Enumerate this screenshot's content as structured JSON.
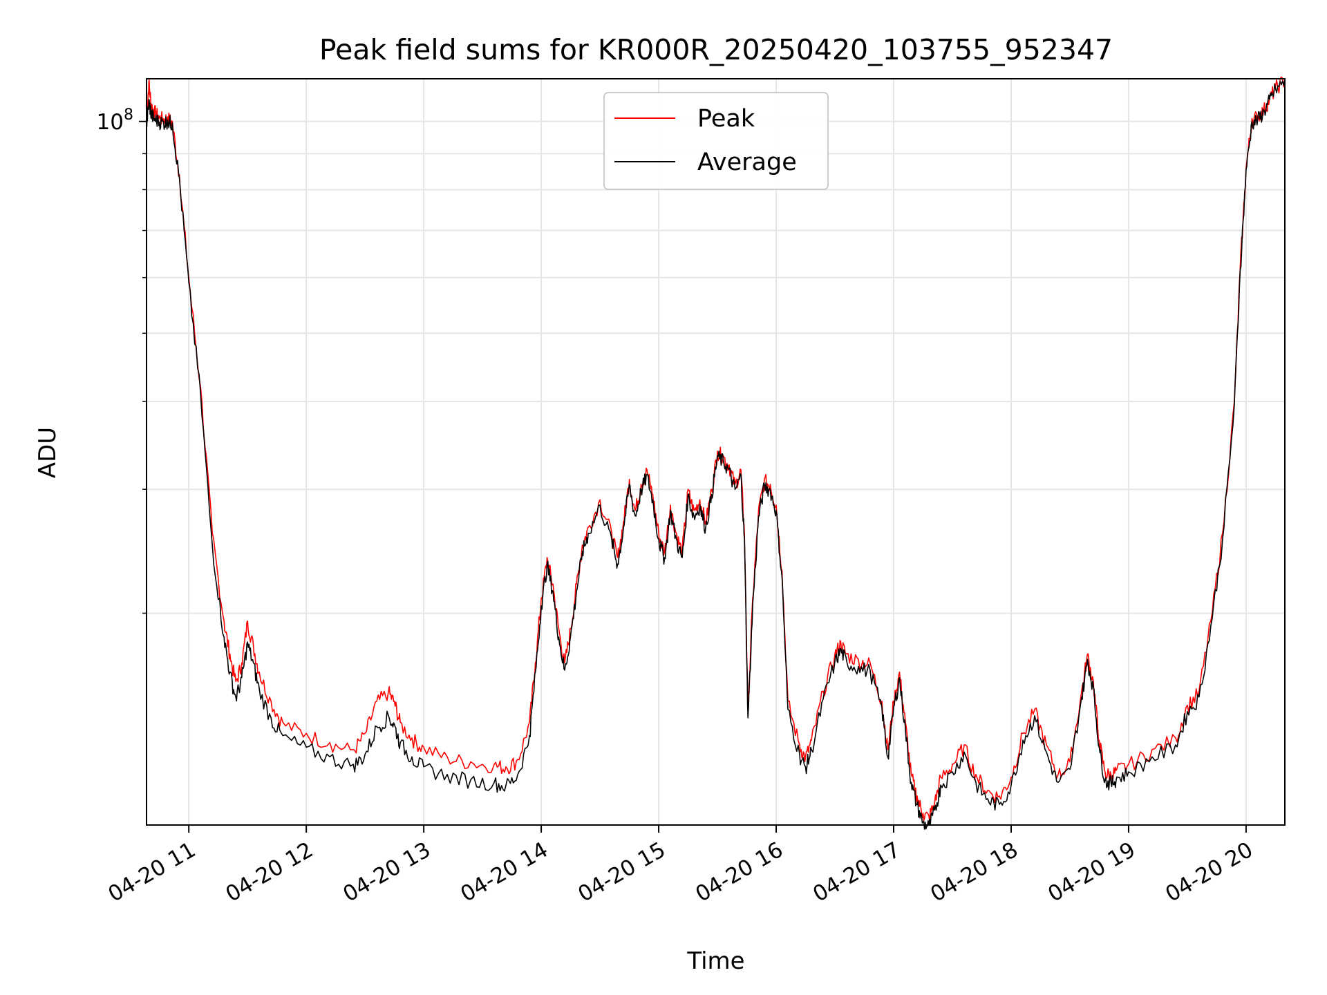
{
  "chart_data": {
    "type": "line",
    "title": "Peak field sums for KR000R_20250420_103755_952347",
    "xlabel": "Time",
    "ylabel": "ADU",
    "yscale": "log",
    "grid": true,
    "legend_position": "top-center",
    "xlim": [
      10.64,
      20.33
    ],
    "ylim": [
      10000000,
      115000000
    ],
    "x_unit": "hour of 2025-04-20",
    "x_ticks": [
      11,
      12,
      13,
      14,
      15,
      16,
      17,
      18,
      19,
      20
    ],
    "x_tick_labels": [
      "04-20 11",
      "04-20 12",
      "04-20 13",
      "04-20 14",
      "04-20 15",
      "04-20 16",
      "04-20 17",
      "04-20 18",
      "04-20 19",
      "04-20 20"
    ],
    "y_major_ticks": [
      100000000
    ],
    "y_major_tick_labels": [
      {
        "base": "10",
        "exp": "8"
      }
    ],
    "y_minor_ticks": [
      20000000,
      30000000,
      40000000,
      50000000,
      60000000,
      70000000,
      80000000,
      90000000
    ],
    "series": [
      {
        "name": "Peak",
        "color": "#ff0000",
        "x": [
          10.64,
          10.66,
          10.68,
          10.7,
          10.74,
          10.78,
          10.82,
          10.86,
          10.92,
          11.0,
          11.1,
          11.2,
          11.3,
          11.35,
          11.4,
          11.45,
          11.5,
          11.55,
          11.6,
          11.7,
          11.8,
          12.0,
          12.2,
          12.4,
          12.5,
          12.6,
          12.7,
          12.75,
          12.8,
          12.9,
          13.0,
          13.2,
          13.4,
          13.6,
          13.7,
          13.8,
          13.9,
          13.95,
          14.0,
          14.05,
          14.1,
          14.15,
          14.2,
          14.25,
          14.3,
          14.35,
          14.4,
          14.5,
          14.6,
          14.65,
          14.7,
          14.75,
          14.8,
          14.85,
          14.9,
          14.95,
          15.0,
          15.05,
          15.1,
          15.15,
          15.2,
          15.25,
          15.3,
          15.35,
          15.4,
          15.45,
          15.5,
          15.55,
          15.6,
          15.65,
          15.7,
          15.73,
          15.76,
          15.8,
          15.85,
          15.9,
          15.95,
          16.0,
          16.05,
          16.1,
          16.2,
          16.25,
          16.3,
          16.4,
          16.5,
          16.55,
          16.6,
          16.7,
          16.8,
          16.9,
          16.95,
          17.0,
          17.05,
          17.1,
          17.15,
          17.2,
          17.25,
          17.3,
          17.35,
          17.4,
          17.5,
          17.6,
          17.7,
          17.8,
          17.9,
          18.0,
          18.1,
          18.2,
          18.3,
          18.4,
          18.5,
          18.6,
          18.65,
          18.7,
          18.75,
          18.8,
          18.85,
          18.9,
          19.0,
          19.2,
          19.4,
          19.5,
          19.6,
          19.7,
          19.8,
          19.9,
          19.95,
          20.0,
          20.05,
          20.1,
          20.15,
          20.2,
          20.25,
          20.33
        ],
        "y": [
          100000000,
          114000000,
          106000000,
          104000000,
          102000000,
          101000000,
          101500000,
          100000000,
          84000000,
          60000000,
          42000000,
          26000000,
          19500000,
          17500000,
          16000000,
          17000000,
          19500000,
          18000000,
          16500000,
          15000000,
          14000000,
          13500000,
          13100000,
          12800000,
          13500000,
          15000000,
          15500000,
          15000000,
          14000000,
          13300000,
          12900000,
          12500000,
          12300000,
          12200000,
          12100000,
          12400000,
          14000000,
          17000000,
          21000000,
          24000000,
          22000000,
          19000000,
          17000000,
          19000000,
          22000000,
          25000000,
          26500000,
          29000000,
          26000000,
          24000000,
          27000000,
          31000000,
          28000000,
          30500000,
          32000000,
          29500000,
          26000000,
          24500000,
          28500000,
          26000000,
          24500000,
          30000000,
          28000000,
          29000000,
          27000000,
          30000000,
          34000000,
          33500000,
          32500000,
          30500000,
          32000000,
          26000000,
          14500000,
          21000000,
          28000000,
          31000000,
          30500000,
          28500000,
          23000000,
          15000000,
          13000000,
          12500000,
          13200000,
          15500000,
          17500000,
          18200000,
          17500000,
          17200000,
          17000000,
          15000000,
          12800000,
          15000000,
          16500000,
          14000000,
          11800000,
          11000000,
          10400000,
          10300000,
          10800000,
          11700000,
          12200000,
          13000000,
          11800000,
          11200000,
          11000000,
          11700000,
          13500000,
          14600000,
          13000000,
          11800000,
          12300000,
          15500000,
          17500000,
          16000000,
          13200000,
          11900000,
          11800000,
          12000000,
          12200000,
          12800000,
          13300000,
          14800000,
          15500000,
          19500000,
          26000000,
          40000000,
          62000000,
          86000000,
          101000000,
          102000000,
          104000000,
          108000000,
          112000000,
          115000000
        ]
      },
      {
        "name": "Average",
        "color": "#000000",
        "x": [
          10.64,
          10.66,
          10.68,
          10.7,
          10.74,
          10.78,
          10.82,
          10.86,
          10.92,
          11.0,
          11.1,
          11.2,
          11.3,
          11.35,
          11.4,
          11.45,
          11.5,
          11.55,
          11.6,
          11.7,
          11.8,
          12.0,
          12.2,
          12.4,
          12.5,
          12.6,
          12.7,
          12.75,
          12.8,
          12.9,
          13.0,
          13.2,
          13.4,
          13.6,
          13.7,
          13.8,
          13.9,
          13.95,
          14.0,
          14.05,
          14.1,
          14.15,
          14.2,
          14.25,
          14.3,
          14.35,
          14.4,
          14.5,
          14.6,
          14.65,
          14.7,
          14.75,
          14.8,
          14.85,
          14.9,
          14.95,
          15.0,
          15.05,
          15.1,
          15.15,
          15.2,
          15.25,
          15.3,
          15.35,
          15.4,
          15.45,
          15.5,
          15.55,
          15.6,
          15.65,
          15.7,
          15.73,
          15.76,
          15.8,
          15.85,
          15.9,
          15.95,
          16.0,
          16.05,
          16.1,
          16.2,
          16.25,
          16.3,
          16.4,
          16.5,
          16.55,
          16.6,
          16.7,
          16.8,
          16.9,
          16.95,
          17.0,
          17.05,
          17.1,
          17.15,
          17.2,
          17.25,
          17.3,
          17.35,
          17.4,
          17.5,
          17.6,
          17.7,
          17.8,
          17.9,
          18.0,
          18.1,
          18.2,
          18.3,
          18.4,
          18.5,
          18.6,
          18.65,
          18.7,
          18.75,
          18.8,
          18.85,
          18.9,
          19.0,
          19.2,
          19.4,
          19.5,
          19.6,
          19.7,
          19.8,
          19.9,
          19.95,
          20.0,
          20.05,
          20.1,
          20.15,
          20.2,
          20.25,
          20.33
        ],
        "y": [
          99000000,
          107000000,
          103000000,
          101500000,
          100500000,
          100000000,
          100500000,
          99500000,
          83000000,
          59000000,
          41000000,
          25000000,
          18500000,
          16500000,
          15200000,
          16200000,
          18200000,
          17000000,
          15600000,
          14200000,
          13400000,
          12900000,
          12500000,
          12200000,
          12600000,
          13800000,
          14300000,
          13900000,
          13100000,
          12500000,
          12100000,
          11800000,
          11600000,
          11500000,
          11400000,
          11800000,
          13400000,
          16500000,
          20500000,
          23500000,
          21500000,
          18500000,
          16600000,
          18600000,
          21500000,
          24500000,
          26000000,
          28500000,
          25500000,
          23500000,
          26500000,
          30500000,
          27500000,
          30000000,
          31500000,
          29000000,
          25500000,
          24000000,
          28000000,
          25500000,
          24000000,
          29500000,
          27500000,
          28500000,
          26500000,
          29500000,
          33500000,
          33000000,
          32000000,
          30000000,
          31500000,
          25500000,
          14200000,
          20500000,
          27500000,
          30500000,
          30000000,
          28000000,
          22500000,
          14600000,
          12600000,
          12100000,
          12800000,
          15100000,
          17100000,
          17800000,
          17100000,
          16800000,
          16600000,
          14700000,
          12500000,
          14700000,
          16200000,
          13700000,
          11500000,
          10700000,
          10100000,
          10000000,
          10500000,
          11400000,
          11900000,
          12700000,
          11500000,
          10900000,
          10700000,
          11400000,
          13200000,
          14300000,
          12700000,
          11500000,
          12000000,
          15200000,
          17200000,
          15700000,
          12900000,
          11600000,
          11500000,
          11700000,
          11900000,
          12500000,
          13000000,
          14500000,
          15200000,
          19200000,
          25500000,
          39500000,
          61500000,
          85500000,
          100000000,
          101000000,
          103500000,
          107500000,
          111500000,
          114500000
        ]
      }
    ]
  }
}
